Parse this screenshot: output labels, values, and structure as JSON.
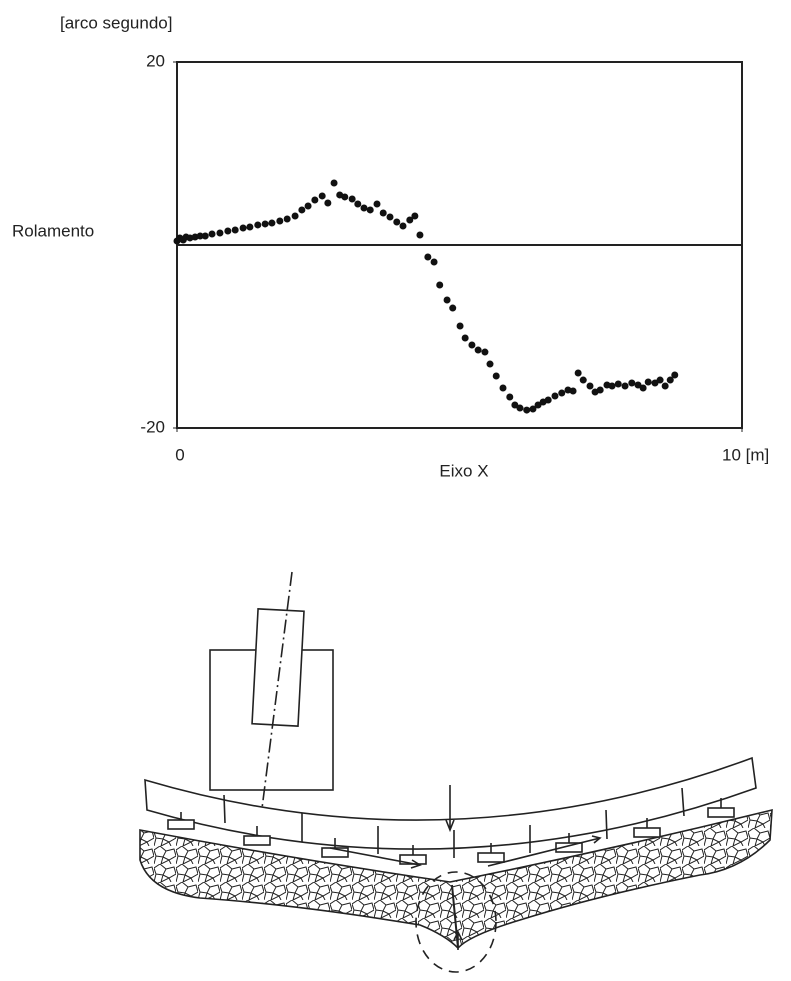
{
  "chart_data": {
    "type": "scatter",
    "y_label": "[arco segundo]",
    "side_label": "Rolamento",
    "x_label": "Eixo X",
    "color": "#111111",
    "xlim": [
      0,
      10
    ],
    "ylim": [
      -20,
      20
    ],
    "xticks": [
      0,
      {
        "value": 10,
        "label": "10 [m]"
      }
    ],
    "yticks": [
      -20,
      20
    ],
    "x": [
      0,
      0.05,
      0.11,
      0.16,
      0.23,
      0.32,
      0.41,
      0.5,
      0.62,
      0.76,
      0.9,
      1.03,
      1.17,
      1.29,
      1.43,
      1.56,
      1.68,
      1.82,
      1.95,
      2.09,
      2.21,
      2.32,
      2.44,
      2.57,
      2.67,
      2.78,
      2.88,
      2.97,
      3.1,
      3.2,
      3.31,
      3.42,
      3.54,
      3.65,
      3.77,
      3.89,
      4.0,
      4.12,
      4.21,
      4.3,
      4.44,
      4.55,
      4.65,
      4.78,
      4.88,
      5.01,
      5.1,
      5.22,
      5.33,
      5.45,
      5.54,
      5.65,
      5.77,
      5.89,
      5.98,
      6.07,
      6.19,
      6.3,
      6.39,
      6.48,
      6.57,
      6.69,
      6.81,
      6.92,
      7.01,
      7.1,
      7.19,
      7.31,
      7.4,
      7.49,
      7.61,
      7.7,
      7.81,
      7.93,
      8.05,
      8.16,
      8.25,
      8.34,
      8.46,
      8.55,
      8.64,
      8.73,
      8.81
    ],
    "values": [
      0.44,
      0.77,
      0.55,
      0.87,
      0.77,
      0.87,
      0.98,
      0.98,
      1.2,
      1.31,
      1.53,
      1.64,
      1.86,
      1.97,
      2.19,
      2.3,
      2.4,
      2.62,
      2.84,
      3.17,
      3.83,
      4.26,
      4.92,
      5.36,
      4.59,
      6.78,
      5.47,
      5.25,
      5.03,
      4.48,
      4.04,
      3.83,
      4.48,
      3.5,
      3.06,
      2.51,
      2.08,
      2.73,
      3.17,
      1.09,
      -1.31,
      -1.86,
      -4.37,
      -6.01,
      -6.89,
      -8.85,
      -10.16,
      -10.93,
      -11.48,
      -11.7,
      -13.01,
      -14.32,
      -15.63,
      -16.61,
      -17.49,
      -17.82,
      -18.04,
      -17.93,
      -17.49,
      -17.16,
      -16.94,
      -16.5,
      -16.18,
      -15.85,
      -15.96,
      -13.99,
      -14.76,
      -15.41,
      -16.07,
      -15.85,
      -15.3,
      -15.41,
      -15.19,
      -15.41,
      -15.08,
      -15.3,
      -15.63,
      -14.97,
      -15.08,
      -14.76,
      -15.41,
      -14.76,
      -14.21
    ]
  }
}
